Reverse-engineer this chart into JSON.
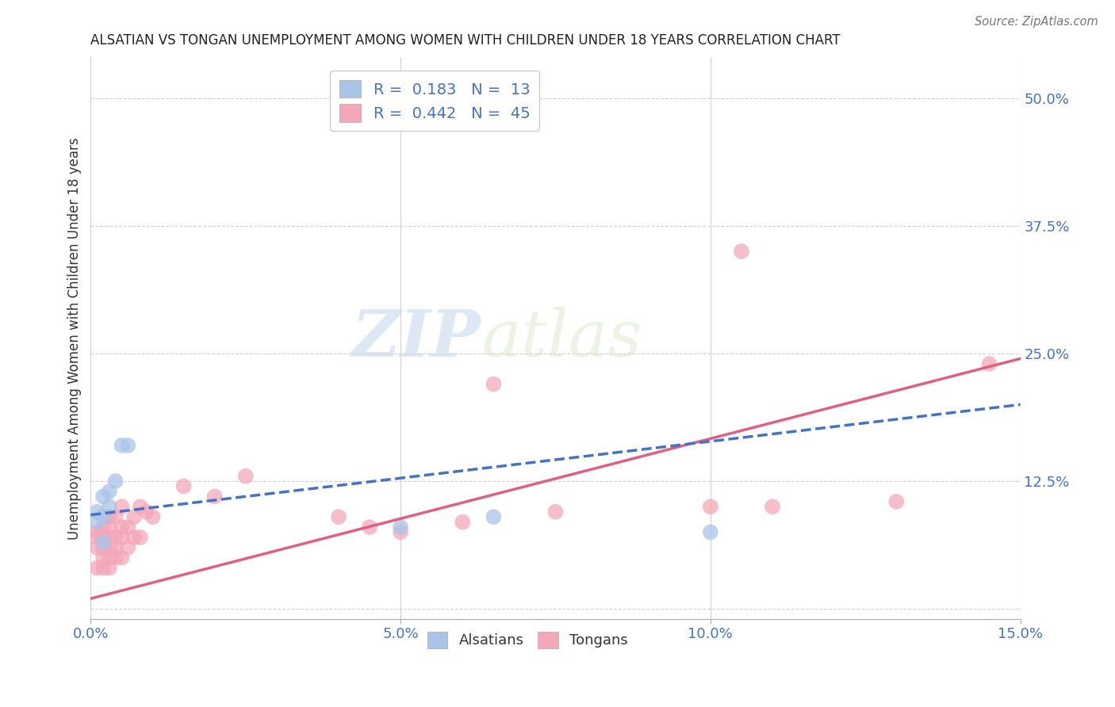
{
  "title": "ALSATIAN VS TONGAN UNEMPLOYMENT AMONG WOMEN WITH CHILDREN UNDER 18 YEARS CORRELATION CHART",
  "source": "Source: ZipAtlas.com",
  "ylabel": "Unemployment Among Women with Children Under 18 years",
  "xlim": [
    0.0,
    0.15
  ],
  "ylim": [
    -0.01,
    0.54
  ],
  "xticks": [
    0.0,
    0.05,
    0.1,
    0.15
  ],
  "xticklabels": [
    "0.0%",
    "5.0%",
    "10.0%",
    "15.0%"
  ],
  "ytick_right": [
    0.0,
    0.125,
    0.25,
    0.375,
    0.5
  ],
  "ytick_right_labels": [
    "",
    "12.5%",
    "25.0%",
    "37.5%",
    "50.0%"
  ],
  "R_alsatian": 0.183,
  "N_alsatian": 13,
  "R_tongan": 0.442,
  "N_tongan": 45,
  "alsatian_color": "#aac4e8",
  "tongan_color": "#f4a7b9",
  "alsatian_line_color": "#4472c4",
  "tongan_line_color": "#e06080",
  "watermark_zip": "ZIP",
  "watermark_atlas": "atlas",
  "alsatian_x": [
    0.001,
    0.001,
    0.002,
    0.002,
    0.002,
    0.003,
    0.003,
    0.004,
    0.005,
    0.006,
    0.05,
    0.065,
    0.1
  ],
  "alsatian_y": [
    0.085,
    0.095,
    0.09,
    0.11,
    0.065,
    0.115,
    0.1,
    0.125,
    0.16,
    0.16,
    0.08,
    0.09,
    0.075
  ],
  "tongan_x": [
    0.001,
    0.001,
    0.001,
    0.001,
    0.002,
    0.002,
    0.002,
    0.002,
    0.002,
    0.003,
    0.003,
    0.003,
    0.003,
    0.003,
    0.003,
    0.004,
    0.004,
    0.004,
    0.004,
    0.005,
    0.005,
    0.005,
    0.005,
    0.006,
    0.006,
    0.007,
    0.007,
    0.008,
    0.008,
    0.009,
    0.01,
    0.015,
    0.02,
    0.025,
    0.04,
    0.045,
    0.05,
    0.06,
    0.065,
    0.075,
    0.1,
    0.105,
    0.11,
    0.13,
    0.145
  ],
  "tongan_y": [
    0.04,
    0.06,
    0.07,
    0.075,
    0.04,
    0.05,
    0.06,
    0.07,
    0.08,
    0.04,
    0.05,
    0.06,
    0.07,
    0.08,
    0.09,
    0.05,
    0.06,
    0.07,
    0.09,
    0.05,
    0.07,
    0.08,
    0.1,
    0.06,
    0.08,
    0.07,
    0.09,
    0.07,
    0.1,
    0.095,
    0.09,
    0.12,
    0.11,
    0.13,
    0.09,
    0.08,
    0.075,
    0.085,
    0.22,
    0.095,
    0.1,
    0.35,
    0.1,
    0.105,
    0.24
  ],
  "alsatian_line": {
    "x0": 0.0,
    "x1": 0.15,
    "y0": 0.092,
    "y1": 0.2
  },
  "tongan_line": {
    "x0": 0.0,
    "x1": 0.15,
    "y0": 0.01,
    "y1": 0.245
  },
  "background_color": "#ffffff",
  "grid_color": "#d0d0d0"
}
